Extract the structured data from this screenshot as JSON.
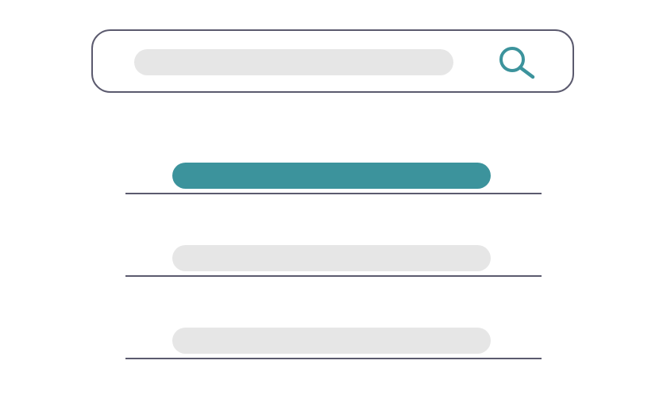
{
  "search": {
    "value": "",
    "placeholder": "",
    "border_color": "#5b5a6e",
    "field_color": "#e6e6e6",
    "icon": "search-icon",
    "icon_color": "#3c939c"
  },
  "results": {
    "selected_index": 0,
    "highlight_color": "#3c939c",
    "item_color": "#e6e6e6",
    "divider_color": "#5b5a6e",
    "items": [
      {
        "label": ""
      },
      {
        "label": ""
      },
      {
        "label": ""
      }
    ]
  }
}
